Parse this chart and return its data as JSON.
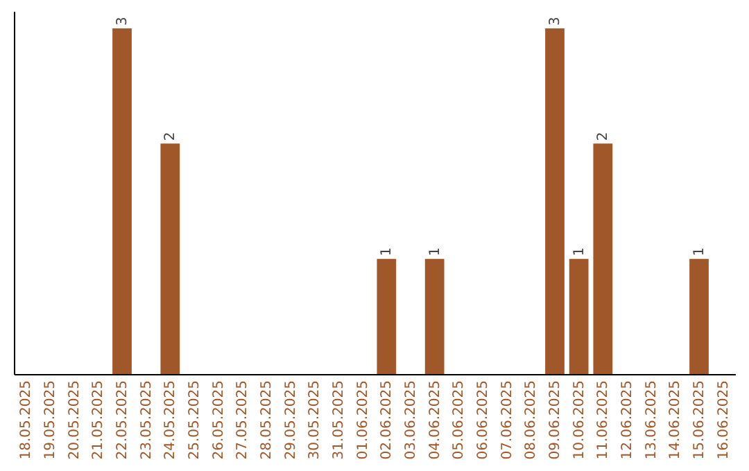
{
  "chart_data": {
    "type": "bar",
    "categories": [
      "18.05.2025",
      "19.05.2025",
      "20.05.2025",
      "21.05.2025",
      "22.05.2025",
      "23.05.2025",
      "24.05.2025",
      "25.05.2025",
      "26.05.2025",
      "27.05.2025",
      "28.05.2025",
      "29.05.2025",
      "30.05.2025",
      "31.05.2025",
      "01.06.2025",
      "02.06.2025",
      "03.06.2025",
      "04.06.2025",
      "05.06.2025",
      "06.06.2025",
      "07.06.2025",
      "08.06.2025",
      "09.06.2025",
      "10.06.2025",
      "11.06.2025",
      "12.06.2025",
      "13.06.2025",
      "14.06.2025",
      "15.06.2025",
      "16.06.2025"
    ],
    "values": [
      0,
      0,
      0,
      0,
      3,
      0,
      2,
      0,
      0,
      0,
      0,
      0,
      0,
      0,
      0,
      1,
      0,
      1,
      0,
      0,
      0,
      0,
      3,
      1,
      2,
      0,
      0,
      0,
      1,
      0
    ],
    "value_labels": [
      null,
      null,
      null,
      null,
      "3",
      null,
      "2",
      null,
      null,
      null,
      null,
      null,
      null,
      null,
      null,
      "1",
      null,
      "1",
      null,
      null,
      null,
      null,
      "3",
      "1",
      "2",
      null,
      null,
      null,
      "1",
      null
    ],
    "color": "#a0572a",
    "ylim": [
      0,
      3.15
    ],
    "tick_labels": "x",
    "grid": false
  }
}
